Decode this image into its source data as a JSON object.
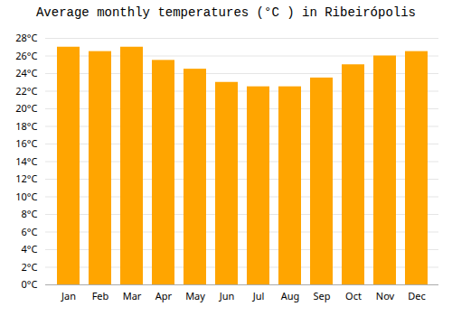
{
  "chart_data": {
    "type": "bar",
    "title": "Average monthly temperatures (°C ) in Ribeirópolis",
    "categories": [
      "Jan",
      "Feb",
      "Mar",
      "Apr",
      "May",
      "Jun",
      "Jul",
      "Aug",
      "Sep",
      "Oct",
      "Nov",
      "Dec"
    ],
    "values": [
      27.0,
      26.5,
      27.0,
      25.5,
      24.5,
      23.0,
      22.5,
      22.5,
      23.5,
      25.0,
      26.0,
      26.5
    ],
    "color": "#FFA500",
    "ylim": [
      0,
      28
    ],
    "yticks": [
      {
        "value": 0,
        "label": "0°C"
      },
      {
        "value": 2,
        "label": "2°C"
      },
      {
        "value": 4,
        "label": "4°C"
      },
      {
        "value": 6,
        "label": "6°C"
      },
      {
        "value": 8,
        "label": "8°C"
      },
      {
        "value": 10,
        "label": "10°C"
      },
      {
        "value": 12,
        "label": "12°C"
      },
      {
        "value": 14,
        "label": "14°C"
      },
      {
        "value": 16,
        "label": "16°C"
      },
      {
        "value": 18,
        "label": "18°C"
      },
      {
        "value": 20,
        "label": "20°C"
      },
      {
        "value": 22,
        "label": "22°C"
      },
      {
        "value": 24,
        "label": "24°C"
      },
      {
        "value": 26,
        "label": "26°C"
      },
      {
        "value": 28,
        "label": "28°C"
      }
    ],
    "grid": true
  }
}
